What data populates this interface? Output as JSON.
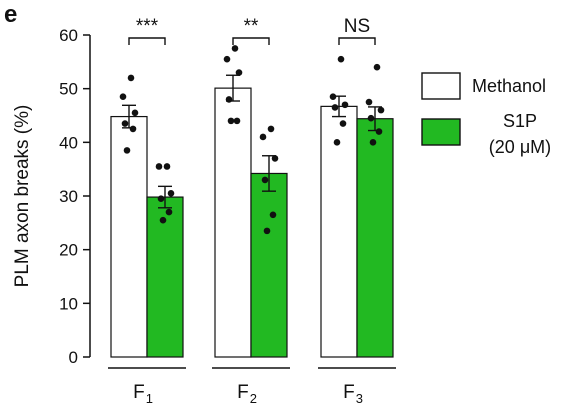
{
  "panel_label": "e",
  "chart_data": {
    "type": "bar",
    "ylabel": "PLM axon breaks (%)",
    "ylim": [
      0,
      60
    ],
    "yticks": [
      0,
      10,
      20,
      30,
      40,
      50,
      60
    ],
    "ytick_labels": [
      "0",
      "10",
      "20",
      "30",
      "40",
      "50",
      "60"
    ],
    "groups": [
      {
        "main": "F",
        "sub": "1",
        "significance": "***"
      },
      {
        "main": "F",
        "sub": "2",
        "significance": "**"
      },
      {
        "main": "F",
        "sub": "3",
        "significance": "NS"
      }
    ],
    "series": [
      {
        "name": "Methanol",
        "color": "#ffffff",
        "values": [
          44.8,
          50.1,
          46.7
        ],
        "sem": [
          2.1,
          2.4,
          1.9
        ],
        "points": [
          [
            52,
            48.5,
            45.5,
            43.5,
            42.5,
            38.5
          ],
          [
            57.5,
            55.5,
            53,
            48,
            44,
            44
          ],
          [
            55.5,
            48.5,
            47,
            46.5,
            43.5,
            40
          ]
        ]
      },
      {
        "name": "S1P",
        "name_line2": "(20 μM)",
        "color": "#22b922",
        "values": [
          29.8,
          34.2,
          44.4
        ],
        "sem": [
          2.0,
          3.3,
          2.2
        ],
        "points": [
          [
            35.5,
            35.5,
            30.5,
            29.5,
            27,
            25.5
          ],
          [
            42.5,
            41,
            37,
            33,
            26.5,
            23.5
          ],
          [
            54,
            47.5,
            46,
            44.5,
            42,
            40
          ]
        ]
      }
    ],
    "legend_position": "right",
    "grid": false
  }
}
